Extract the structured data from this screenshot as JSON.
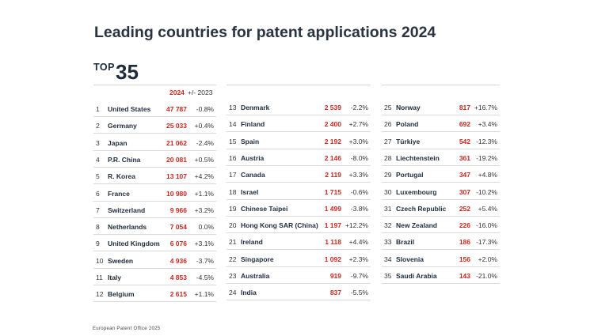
{
  "title": "Leading countries for patent applications 2024",
  "top_label": {
    "word": "TOP",
    "number": "35"
  },
  "header": {
    "year": "2024",
    "change": "+/- 2023"
  },
  "columns": [
    {
      "rows": [
        {
          "rank": "1",
          "country": "United States",
          "value": "47 787",
          "change": "-0.8%"
        },
        {
          "rank": "2",
          "country": "Germany",
          "value": "25 033",
          "change": "+0.4%"
        },
        {
          "rank": "3",
          "country": "Japan",
          "value": "21 062",
          "change": "-2.4%"
        },
        {
          "rank": "4",
          "country": "P.R. China",
          "value": "20 081",
          "change": "+0.5%"
        },
        {
          "rank": "5",
          "country": "R. Korea",
          "value": "13 107",
          "change": "+4.2%"
        },
        {
          "rank": "6",
          "country": "France",
          "value": "10 980",
          "change": "+1.1%"
        },
        {
          "rank": "7",
          "country": "Switzerland",
          "value": "9 966",
          "change": "+3.2%"
        },
        {
          "rank": "8",
          "country": "Netherlands",
          "value": "7 054",
          "change": "0.0%"
        },
        {
          "rank": "9",
          "country": "United Kingdom",
          "value": "6 076",
          "change": "+3.1%"
        },
        {
          "rank": "10",
          "country": "Sweden",
          "value": "4 936",
          "change": "-3.7%"
        },
        {
          "rank": "11",
          "country": "Italy",
          "value": "4 853",
          "change": "-4.5%"
        },
        {
          "rank": "12",
          "country": "Belgium",
          "value": "2 615",
          "change": "+1.1%"
        }
      ]
    },
    {
      "rows": [
        {
          "rank": "13",
          "country": "Denmark",
          "value": "2 539",
          "change": "-2.2%"
        },
        {
          "rank": "14",
          "country": "Finland",
          "value": "2 400",
          "change": "+2.7%"
        },
        {
          "rank": "15",
          "country": "Spain",
          "value": "2 192",
          "change": "+3.0%"
        },
        {
          "rank": "16",
          "country": "Austria",
          "value": "2 146",
          "change": "-8.0%"
        },
        {
          "rank": "17",
          "country": "Canada",
          "value": "2 119",
          "change": "+3.3%"
        },
        {
          "rank": "18",
          "country": "Israel",
          "value": "1 715",
          "change": "-0.6%"
        },
        {
          "rank": "19",
          "country": "Chinese Taipei",
          "value": "1 499",
          "change": "-3.8%"
        },
        {
          "rank": "20",
          "country": "Hong Kong SAR (China)",
          "value": "1 197",
          "change": "+12.2%"
        },
        {
          "rank": "21",
          "country": "Ireland",
          "value": "1 118",
          "change": "+4.4%"
        },
        {
          "rank": "22",
          "country": "Singapore",
          "value": "1 092",
          "change": "+2.3%"
        },
        {
          "rank": "23",
          "country": "Australia",
          "value": "919",
          "change": "-9.7%"
        },
        {
          "rank": "24",
          "country": "India",
          "value": "837",
          "change": "-5.5%"
        }
      ]
    },
    {
      "rows": [
        {
          "rank": "25",
          "country": "Norway",
          "value": "817",
          "change": "+16.7%"
        },
        {
          "rank": "26",
          "country": "Poland",
          "value": "692",
          "change": "+3.4%"
        },
        {
          "rank": "27",
          "country": "Türkiye",
          "value": "542",
          "change": "-12.3%"
        },
        {
          "rank": "28",
          "country": "Liechtenstein",
          "value": "361",
          "change": "-19.2%"
        },
        {
          "rank": "29",
          "country": "Portugal",
          "value": "347",
          "change": "+4.8%"
        },
        {
          "rank": "30",
          "country": "Luxembourg",
          "value": "307",
          "change": "-10.2%"
        },
        {
          "rank": "31",
          "country": "Czech Republic",
          "value": "252",
          "change": "+5.4%"
        },
        {
          "rank": "32",
          "country": "New Zealand",
          "value": "226",
          "change": "-16.0%"
        },
        {
          "rank": "33",
          "country": "Brazil",
          "value": "186",
          "change": "-17.3%"
        },
        {
          "rank": "34",
          "country": "Slovenia",
          "value": "156",
          "change": "+2.0%"
        },
        {
          "rank": "35",
          "country": "Saudi Arabia",
          "value": "143",
          "change": "-21.0%"
        }
      ]
    }
  ],
  "footer": "European Patent Office 2025",
  "colors": {
    "value": "#c8281e",
    "text": "#1d2b3a",
    "rule": "#d9d9d9"
  }
}
